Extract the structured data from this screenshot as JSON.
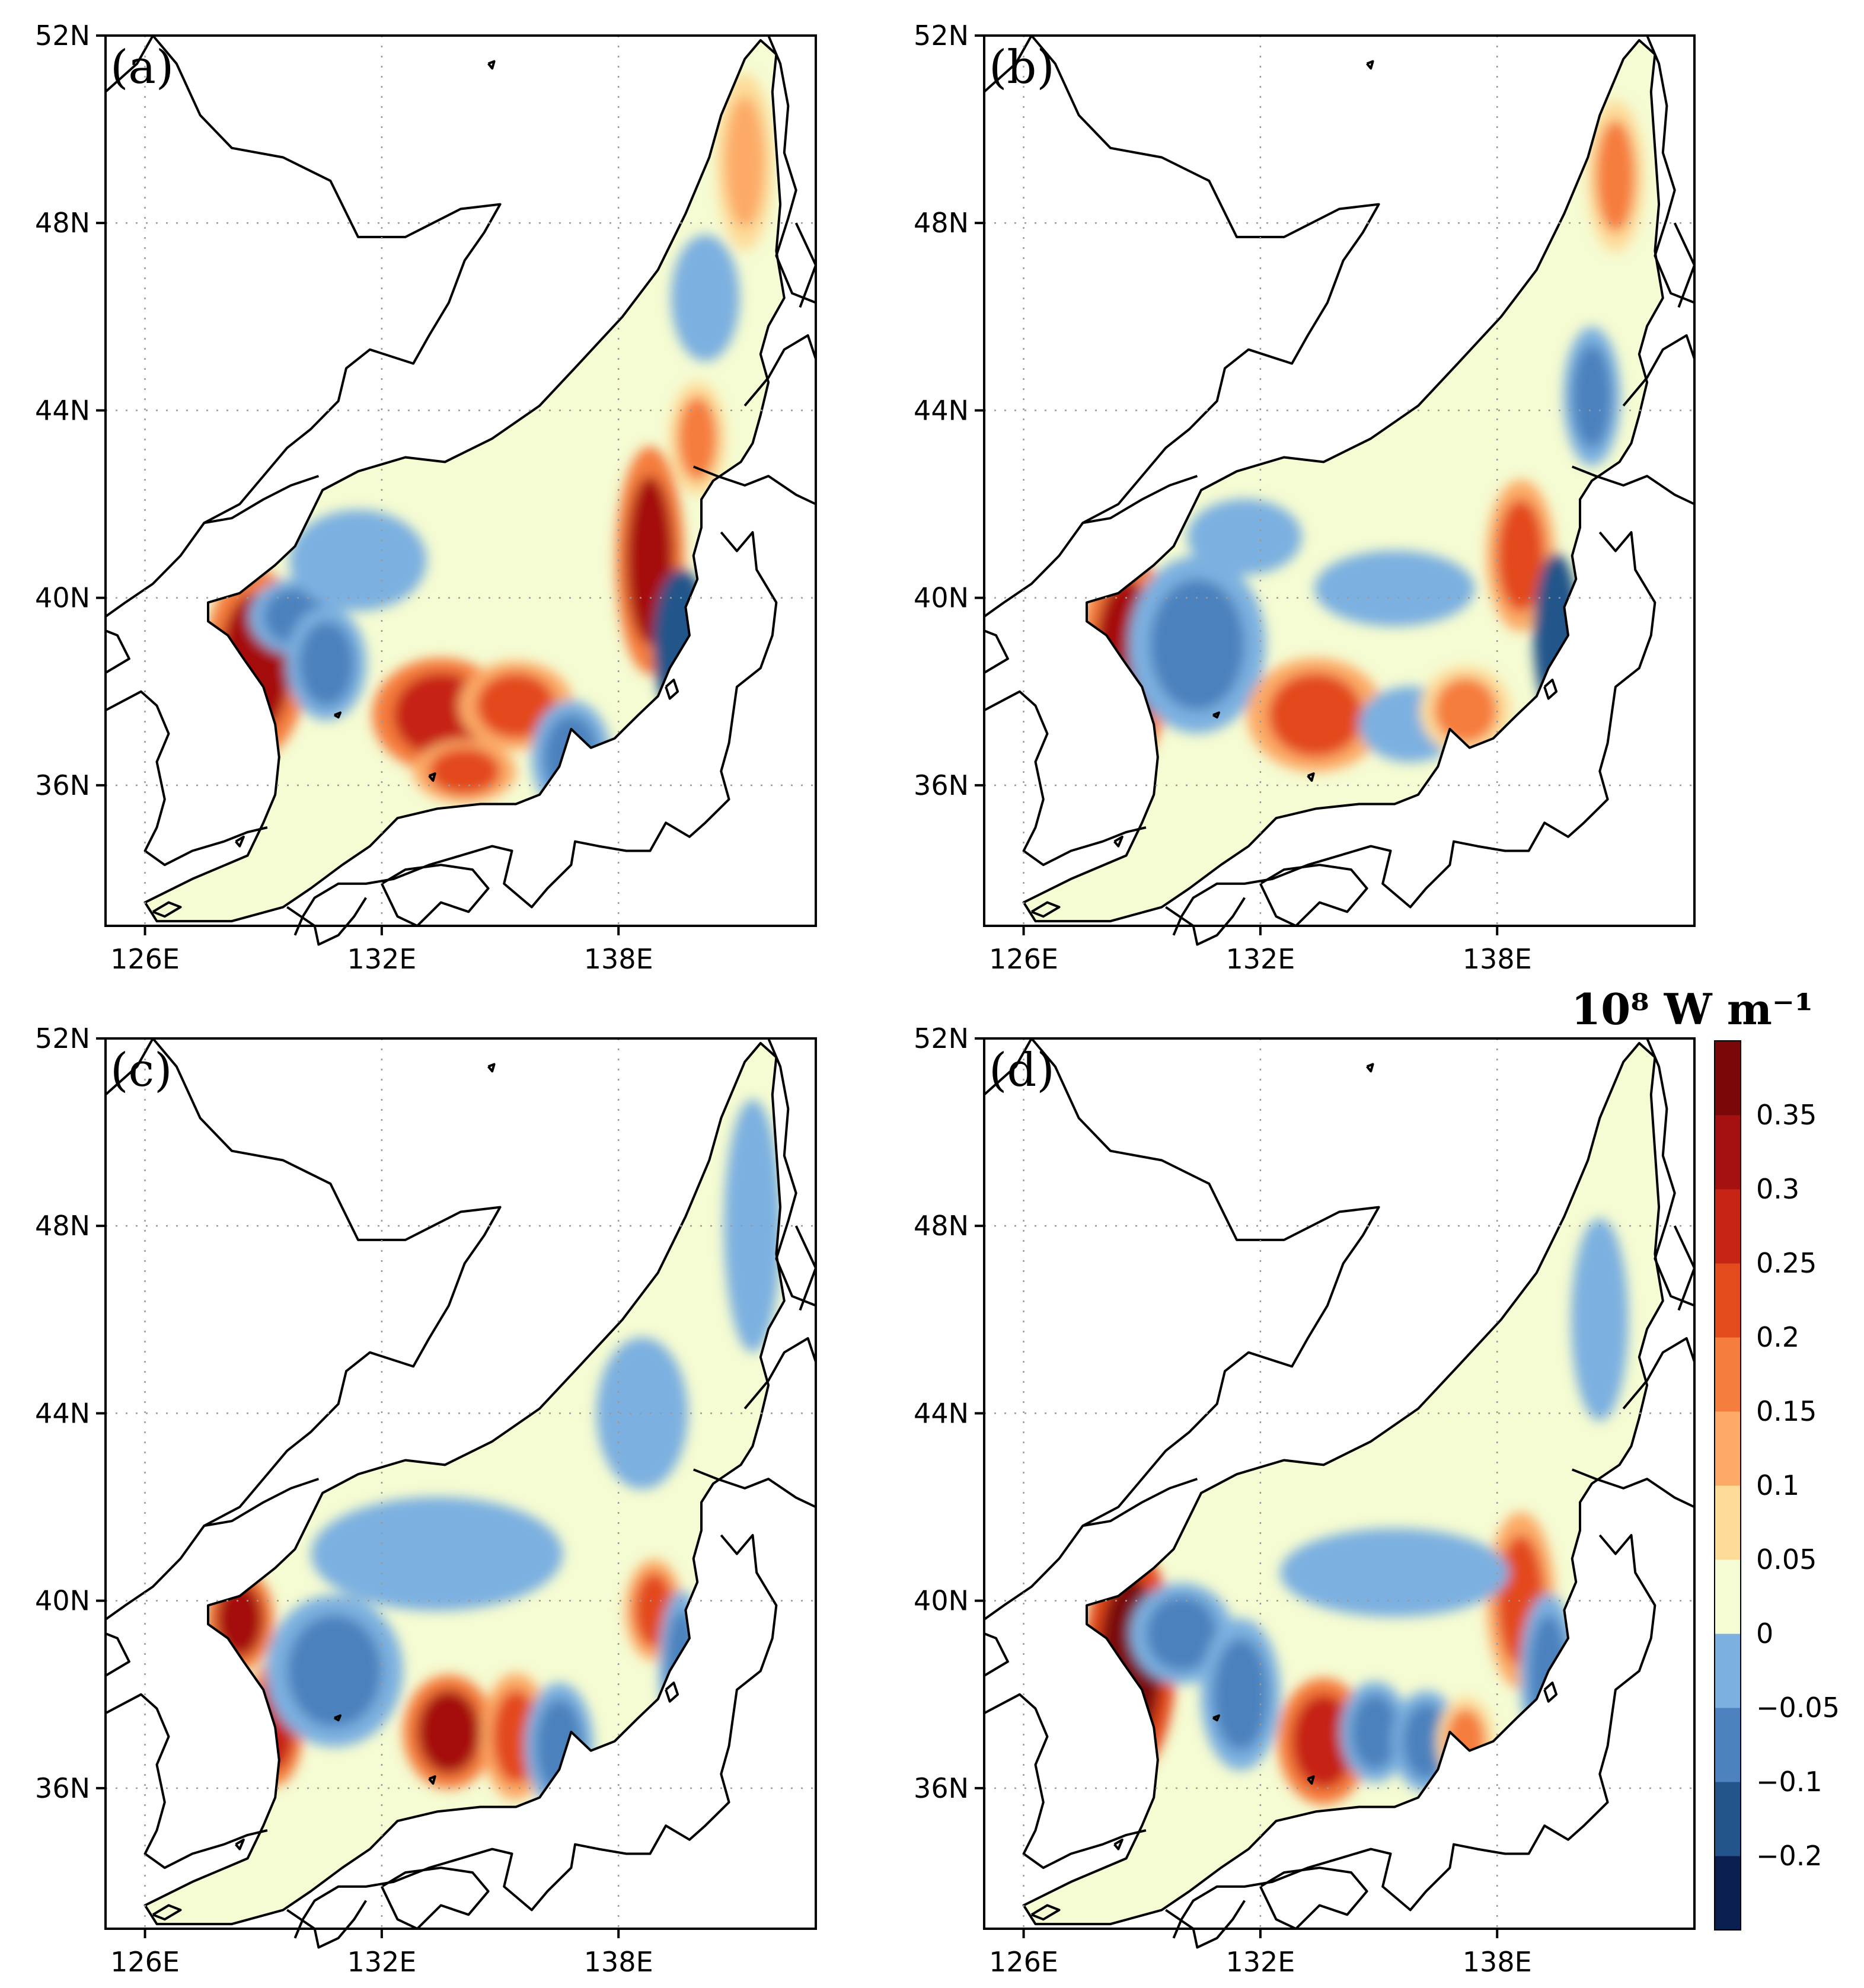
{
  "figure": {
    "panels": [
      {
        "label": "(a)",
        "blobs": [
          {
            "lon": 128.8,
            "lat": 38.6,
            "v": 0.3,
            "rx": 0.9,
            "ry": 1.5
          },
          {
            "lon": 129.8,
            "lat": 39.6,
            "v": -0.1,
            "rx": 0.8,
            "ry": 0.6
          },
          {
            "lon": 130.6,
            "lat": 38.6,
            "v": -0.1,
            "rx": 0.7,
            "ry": 0.9
          },
          {
            "lon": 133.5,
            "lat": 37.5,
            "v": 0.25,
            "rx": 1.2,
            "ry": 0.9
          },
          {
            "lon": 135.4,
            "lat": 37.7,
            "v": 0.2,
            "rx": 1.0,
            "ry": 0.7
          },
          {
            "lon": 134.1,
            "lat": 36.3,
            "v": 0.2,
            "rx": 0.9,
            "ry": 0.5
          },
          {
            "lon": 136.8,
            "lat": 36.6,
            "v": -0.1,
            "rx": 0.7,
            "ry": 0.9
          },
          {
            "lon": 138.8,
            "lat": 40.8,
            "v": 0.3,
            "rx": 0.6,
            "ry": 1.8
          },
          {
            "lon": 139.6,
            "lat": 39.0,
            "v": -0.2,
            "rx": 0.5,
            "ry": 1.2
          },
          {
            "lon": 140.0,
            "lat": 43.4,
            "v": 0.15,
            "rx": 0.5,
            "ry": 0.9
          },
          {
            "lon": 131.4,
            "lat": 40.8,
            "v": -0.05,
            "rx": 1.2,
            "ry": 0.8
          },
          {
            "lon": 141.2,
            "lat": 49.3,
            "v": 0.1,
            "rx": 0.5,
            "ry": 1.4
          },
          {
            "lon": 140.2,
            "lat": 46.4,
            "v": -0.05,
            "rx": 0.6,
            "ry": 1.0
          }
        ]
      },
      {
        "label": "(b)",
        "blobs": [
          {
            "lon": 128.6,
            "lat": 38.7,
            "v": 0.3,
            "rx": 0.8,
            "ry": 1.7
          },
          {
            "lon": 130.4,
            "lat": 39.0,
            "v": -0.1,
            "rx": 1.2,
            "ry": 1.4
          },
          {
            "lon": 133.4,
            "lat": 37.5,
            "v": 0.2,
            "rx": 1.2,
            "ry": 0.9
          },
          {
            "lon": 135.8,
            "lat": 37.3,
            "v": -0.05,
            "rx": 0.9,
            "ry": 0.6
          },
          {
            "lon": 137.2,
            "lat": 37.6,
            "v": 0.15,
            "rx": 0.8,
            "ry": 0.7
          },
          {
            "lon": 138.6,
            "lat": 40.9,
            "v": 0.2,
            "rx": 0.6,
            "ry": 1.2
          },
          {
            "lon": 139.5,
            "lat": 39.2,
            "v": -0.2,
            "rx": 0.4,
            "ry": 1.3
          },
          {
            "lon": 131.6,
            "lat": 41.3,
            "v": -0.05,
            "rx": 1.0,
            "ry": 0.6
          },
          {
            "lon": 135.4,
            "lat": 40.2,
            "v": -0.05,
            "rx": 1.4,
            "ry": 0.6
          },
          {
            "lon": 140.4,
            "lat": 44.3,
            "v": -0.1,
            "rx": 0.5,
            "ry": 1.1
          },
          {
            "lon": 141.0,
            "lat": 49.0,
            "v": 0.15,
            "rx": 0.5,
            "ry": 1.2
          }
        ]
      },
      {
        "label": "(c)",
        "blobs": [
          {
            "lon": 128.4,
            "lat": 39.6,
            "v": 0.3,
            "rx": 0.6,
            "ry": 0.8
          },
          {
            "lon": 129.3,
            "lat": 37.4,
            "v": 0.25,
            "rx": 0.5,
            "ry": 1.0
          },
          {
            "lon": 130.8,
            "lat": 38.5,
            "v": -0.1,
            "rx": 1.2,
            "ry": 1.2
          },
          {
            "lon": 133.7,
            "lat": 37.2,
            "v": 0.3,
            "rx": 0.8,
            "ry": 0.9
          },
          {
            "lon": 135.4,
            "lat": 37.1,
            "v": 0.2,
            "rx": 0.6,
            "ry": 1.0
          },
          {
            "lon": 136.5,
            "lat": 36.9,
            "v": -0.1,
            "rx": 0.6,
            "ry": 1.0
          },
          {
            "lon": 138.9,
            "lat": 39.8,
            "v": 0.2,
            "rx": 0.5,
            "ry": 0.8
          },
          {
            "lon": 139.6,
            "lat": 38.6,
            "v": -0.1,
            "rx": 0.4,
            "ry": 1.2
          },
          {
            "lon": 133.4,
            "lat": 41.0,
            "v": -0.05,
            "rx": 2.2,
            "ry": 0.9
          },
          {
            "lon": 138.6,
            "lat": 44.0,
            "v": -0.05,
            "rx": 0.8,
            "ry": 1.2
          },
          {
            "lon": 141.4,
            "lat": 48.0,
            "v": -0.05,
            "rx": 0.5,
            "ry": 2.0
          }
        ]
      },
      {
        "label": "(d)",
        "blobs": [
          {
            "lon": 128.7,
            "lat": 38.7,
            "v": 0.35,
            "rx": 0.8,
            "ry": 1.8
          },
          {
            "lon": 130.0,
            "lat": 39.3,
            "v": -0.1,
            "rx": 0.9,
            "ry": 0.8
          },
          {
            "lon": 131.5,
            "lat": 38.0,
            "v": -0.1,
            "rx": 0.7,
            "ry": 1.2
          },
          {
            "lon": 133.6,
            "lat": 37.0,
            "v": 0.25,
            "rx": 0.8,
            "ry": 1.0
          },
          {
            "lon": 134.9,
            "lat": 37.2,
            "v": -0.1,
            "rx": 0.6,
            "ry": 0.8
          },
          {
            "lon": 136.2,
            "lat": 37.0,
            "v": -0.1,
            "rx": 0.6,
            "ry": 0.8
          },
          {
            "lon": 137.2,
            "lat": 37.0,
            "v": 0.15,
            "rx": 0.5,
            "ry": 0.7
          },
          {
            "lon": 138.6,
            "lat": 40.0,
            "v": 0.2,
            "rx": 0.6,
            "ry": 1.4
          },
          {
            "lon": 139.3,
            "lat": 38.4,
            "v": -0.1,
            "rx": 0.5,
            "ry": 1.3
          },
          {
            "lon": 135.4,
            "lat": 40.6,
            "v": -0.05,
            "rx": 2.0,
            "ry": 0.7
          },
          {
            "lon": 140.6,
            "lat": 46.0,
            "v": -0.05,
            "rx": 0.5,
            "ry": 1.6
          }
        ]
      }
    ],
    "axes": {
      "lon_range": [
        125,
        143
      ],
      "lat_range": [
        33,
        52
      ],
      "lon_ticks": [
        "126E",
        "132E",
        "138E"
      ],
      "lon_tick_values": [
        126,
        132,
        138
      ],
      "lat_ticks": [
        "36N",
        "40N",
        "44N",
        "48N",
        "52N"
      ],
      "lat_tick_values": [
        36,
        40,
        44,
        48,
        52
      ]
    },
    "colorbar": {
      "units": "10⁸ W m⁻¹",
      "labels": [
        "0.35",
        "0.3",
        "0.25",
        "0.2",
        "0.15",
        "0.1",
        "0.05",
        "0",
        "−0.05",
        "−0.1",
        "−0.2"
      ],
      "bins": [
        {
          "min": -0.3,
          "max": -0.2,
          "color": "#0a1f50"
        },
        {
          "min": -0.2,
          "max": -0.1,
          "color": "#23548a"
        },
        {
          "min": -0.1,
          "max": -0.05,
          "color": "#4c82bd"
        },
        {
          "min": -0.05,
          "max": 0,
          "color": "#7cb0e0"
        },
        {
          "min": 0,
          "max": 0.05,
          "color": "#f5fbd2"
        },
        {
          "min": 0.05,
          "max": 0.1,
          "color": "#fddc9a"
        },
        {
          "min": 0.1,
          "max": 0.15,
          "color": "#fcaa66"
        },
        {
          "min": 0.15,
          "max": 0.2,
          "color": "#f57d3d"
        },
        {
          "min": 0.2,
          "max": 0.25,
          "color": "#e34a1c"
        },
        {
          "min": 0.25,
          "max": 0.3,
          "color": "#c62414"
        },
        {
          "min": 0.3,
          "max": 0.35,
          "color": "#a51010"
        },
        {
          "min": 0.35,
          "max": 0.4,
          "color": "#7a0808"
        }
      ]
    },
    "colors": {
      "coastline": "#000000",
      "land": "#ffffff",
      "frame": "#000000",
      "gridline": "#9a9a9a"
    }
  }
}
